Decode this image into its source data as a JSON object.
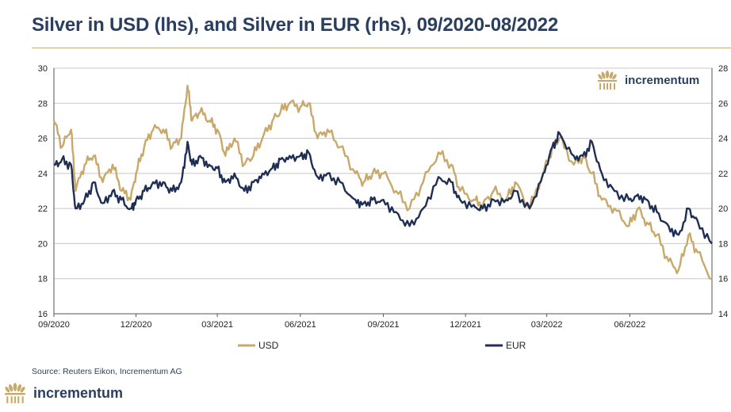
{
  "header": {
    "title": "Silver in USD (lhs), and Silver in EUR (rhs), 09/2020-08/2022"
  },
  "brand": {
    "name": "incrementum",
    "text_color": "#2a3f5f",
    "logo_color": "#c8a96a"
  },
  "source": "Source: Reuters Eikon, Incrementum AG",
  "chart_data": {
    "type": "line",
    "title": "Silver in USD (lhs), and Silver in EUR (rhs), 09/2020-08/2022",
    "x_ticks": [
      "09/2020",
      "12/2020",
      "03/2021",
      "06/2021",
      "09/2021",
      "12/2021",
      "03/2022",
      "06/2022"
    ],
    "x_range": [
      "2020-09-01",
      "2022-08-31"
    ],
    "y_left": {
      "ticks": [
        16,
        18,
        20,
        22,
        24,
        26,
        28,
        30
      ],
      "range": [
        16,
        30
      ]
    },
    "y_right": {
      "ticks": [
        14,
        16,
        18,
        20,
        22,
        24,
        26,
        28
      ],
      "range": [
        14,
        28
      ]
    },
    "grid": true,
    "legend_position": "bottom",
    "series": [
      {
        "name": "USD",
        "axis": "left",
        "color": "#c8a96a",
        "x": [
          "2020-09-01",
          "2020-09-10",
          "2020-09-20",
          "2020-09-25",
          "2020-10-05",
          "2020-10-15",
          "2020-10-25",
          "2020-11-05",
          "2020-11-15",
          "2020-11-25",
          "2020-12-01",
          "2020-12-10",
          "2020-12-20",
          "2020-12-31",
          "2021-01-10",
          "2021-01-20",
          "2021-01-27",
          "2021-02-01",
          "2021-02-10",
          "2021-02-20",
          "2021-03-01",
          "2021-03-10",
          "2021-03-20",
          "2021-03-31",
          "2021-04-10",
          "2021-04-20",
          "2021-05-01",
          "2021-05-10",
          "2021-05-20",
          "2021-06-01",
          "2021-06-10",
          "2021-06-20",
          "2021-07-01",
          "2021-07-15",
          "2021-08-01",
          "2021-08-10",
          "2021-08-20",
          "2021-09-01",
          "2021-09-15",
          "2021-09-30",
          "2021-10-15",
          "2021-11-01",
          "2021-11-15",
          "2021-11-25",
          "2021-12-10",
          "2021-12-20",
          "2022-01-01",
          "2022-01-15",
          "2022-01-25",
          "2022-02-10",
          "2022-02-25",
          "2022-03-07",
          "2022-03-15",
          "2022-03-31",
          "2022-04-10",
          "2022-04-20",
          "2022-05-01",
          "2022-05-15",
          "2022-05-31",
          "2022-06-10",
          "2022-06-20",
          "2022-07-01",
          "2022-07-14",
          "2022-07-25",
          "2022-08-05",
          "2022-08-15",
          "2022-08-31"
        ],
        "y": [
          27.0,
          25.5,
          26.5,
          23.0,
          24.5,
          25.0,
          23.5,
          24.5,
          23.0,
          22.5,
          24.0,
          25.5,
          26.5,
          26.5,
          25.5,
          26.0,
          29.0,
          27.0,
          27.5,
          27.0,
          26.5,
          25.0,
          26.0,
          24.5,
          25.0,
          26.0,
          27.0,
          27.5,
          28.0,
          27.8,
          28.0,
          26.0,
          26.5,
          25.5,
          24.0,
          23.5,
          24.0,
          24.0,
          23.0,
          22.0,
          23.5,
          25.2,
          24.5,
          23.0,
          22.5,
          22.2,
          23.0,
          22.5,
          23.5,
          22.0,
          24.0,
          25.5,
          26.0,
          24.5,
          25.0,
          24.0,
          22.5,
          22.0,
          21.0,
          22.0,
          21.2,
          20.5,
          19.0,
          18.5,
          20.5,
          19.5,
          18.0
        ]
      },
      {
        "name": "EUR",
        "axis": "right",
        "color": "#1f2e55",
        "x": [
          "2020-09-01",
          "2020-09-10",
          "2020-09-20",
          "2020-09-25",
          "2020-10-05",
          "2020-10-15",
          "2020-10-25",
          "2020-11-05",
          "2020-11-15",
          "2020-11-25",
          "2020-12-01",
          "2020-12-10",
          "2020-12-20",
          "2020-12-31",
          "2021-01-10",
          "2021-01-20",
          "2021-01-27",
          "2021-02-01",
          "2021-02-10",
          "2021-02-20",
          "2021-03-01",
          "2021-03-10",
          "2021-03-20",
          "2021-03-31",
          "2021-04-10",
          "2021-04-20",
          "2021-05-01",
          "2021-05-10",
          "2021-05-20",
          "2021-06-01",
          "2021-06-10",
          "2021-06-20",
          "2021-07-01",
          "2021-07-15",
          "2021-08-01",
          "2021-08-10",
          "2021-08-20",
          "2021-09-01",
          "2021-09-15",
          "2021-09-30",
          "2021-10-15",
          "2021-11-01",
          "2021-11-15",
          "2021-11-25",
          "2021-12-10",
          "2021-12-20",
          "2022-01-01",
          "2022-01-15",
          "2022-01-25",
          "2022-02-10",
          "2022-02-25",
          "2022-03-07",
          "2022-03-15",
          "2022-03-31",
          "2022-04-10",
          "2022-04-20",
          "2022-05-01",
          "2022-05-15",
          "2022-05-31",
          "2022-06-10",
          "2022-06-20",
          "2022-07-01",
          "2022-07-14",
          "2022-07-25",
          "2022-08-05",
          "2022-08-15",
          "2022-08-31"
        ],
        "y": [
          22.5,
          22.8,
          22.5,
          20.0,
          20.5,
          21.5,
          20.3,
          21.0,
          20.5,
          20.0,
          20.5,
          21.0,
          21.5,
          21.5,
          21.0,
          21.5,
          23.8,
          22.5,
          23.0,
          22.5,
          22.3,
          21.5,
          22.0,
          21.0,
          21.5,
          22.0,
          22.3,
          22.8,
          23.0,
          23.0,
          23.2,
          21.8,
          22.0,
          21.5,
          20.5,
          20.3,
          20.5,
          20.5,
          19.8,
          19.0,
          20.0,
          21.8,
          21.5,
          20.5,
          20.2,
          20.0,
          20.5,
          20.5,
          21.0,
          20.0,
          22.0,
          23.5,
          24.3,
          23.0,
          23.0,
          23.8,
          22.0,
          21.0,
          20.5,
          20.8,
          20.5,
          19.8,
          19.0,
          18.5,
          20.0,
          19.3,
          18.0
        ]
      }
    ]
  }
}
